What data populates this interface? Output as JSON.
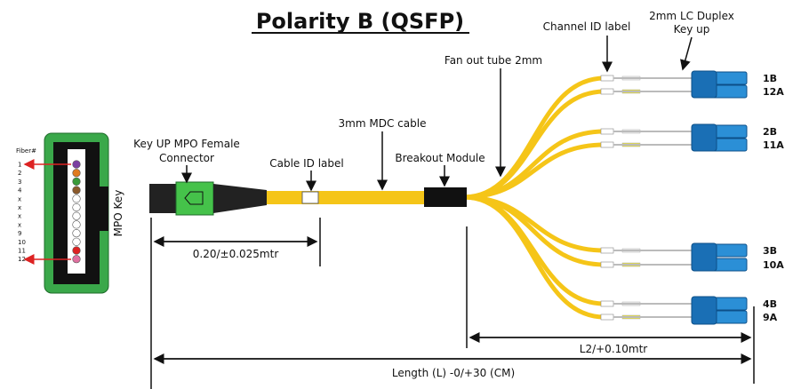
{
  "title": "Polarity B (QSFP)",
  "labels": {
    "channel_id": "Channel ID label",
    "lc_duplex": [
      "2mm LC Duplex",
      "Key up"
    ],
    "fan_out": "Fan out tube 2mm",
    "cable": "3mm MDC cable",
    "mpo_connector": [
      "Key UP MPO Female",
      "Connector"
    ],
    "cable_id": "Cable ID label",
    "breakout": "Breakout Module",
    "mpo_key": "MPO Key"
  },
  "dimensions": {
    "boot": "0.20/±0.025mtr",
    "l2": "L2/+0.10mtr",
    "length": "Length (L) -0/+30 (CM)"
  },
  "ports": [
    "1B",
    "12A",
    "2B",
    "11A",
    "3B",
    "10A",
    "4B",
    "9A"
  ],
  "fiber_header": "Fiber#",
  "fibers": [
    "1",
    "2",
    "3",
    "4",
    "x",
    "x",
    "x",
    "x",
    "9",
    "10",
    "11",
    "12"
  ]
}
